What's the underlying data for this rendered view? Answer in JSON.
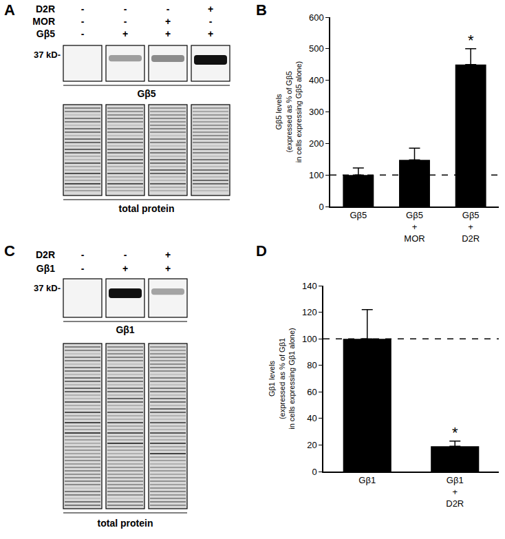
{
  "panel_labels": [
    "A",
    "B",
    "C",
    "D"
  ],
  "blots": [
    {
      "panel": "A",
      "rows": [
        {
          "name": "D2R",
          "signs": [
            "-",
            "-",
            "-",
            "+"
          ]
        },
        {
          "name": "MOR",
          "signs": [
            "-",
            "-",
            "+",
            "-"
          ]
        },
        {
          "name": "Gβ5",
          "signs": [
            "-",
            "+",
            "+",
            "+"
          ]
        }
      ],
      "marker_label": "37 kD-",
      "blot_label": "Gβ5",
      "loading_label": "total protein",
      "chart_panel": "B"
    },
    {
      "panel": "C",
      "rows": [
        {
          "name": "D2R",
          "signs": [
            "-",
            "-",
            "+"
          ]
        },
        {
          "name": "Gβ1",
          "signs": [
            "-",
            "+",
            "+"
          ]
        }
      ],
      "marker_label": "37 kD-",
      "blot_label": "Gβ1",
      "loading_label": "total protein",
      "chart_panel": "D"
    }
  ],
  "chart_data": [
    {
      "panel": "B",
      "type": "bar",
      "categories": [
        "Gβ5",
        "Gβ5\n+\nMOR",
        "Gβ5\n+\nD2R"
      ],
      "values": [
        100,
        148,
        450
      ],
      "errors": [
        22,
        37,
        50
      ],
      "color": "#000000",
      "y_label": "Gβ5 levels\n(expressed as % of Gβ5\nin cells expressing Gβ5 alone)",
      "ylim": [
        0,
        600
      ],
      "yticks": [
        0,
        100,
        200,
        300,
        400,
        500,
        600
      ],
      "reference_line": 100,
      "annotations": [
        {
          "category": "Gβ5\n+\nD2R",
          "text": "*"
        }
      ]
    },
    {
      "panel": "D",
      "type": "bar",
      "categories": [
        "Gβ1",
        "Gβ1\n+\nD2R"
      ],
      "values": [
        100,
        19
      ],
      "errors": [
        22,
        4
      ],
      "color": "#000000",
      "y_label": "Gβ1 levels\n(expressed as % of Gβ1\nin cells expressing Gβ1 alone)",
      "ylim": [
        0,
        140
      ],
      "yticks": [
        0,
        20,
        40,
        60,
        80,
        100,
        120,
        140
      ],
      "reference_line": 100,
      "annotations": [
        {
          "category": "Gβ1\n+\nD2R",
          "text": "*"
        }
      ]
    }
  ]
}
